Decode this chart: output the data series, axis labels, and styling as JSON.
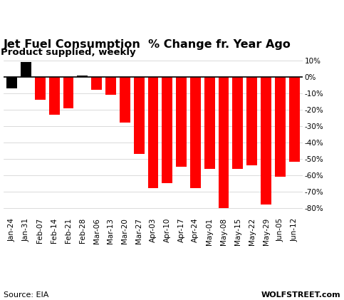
{
  "categories": [
    "Jan-24",
    "Jan-31",
    "Feb-07",
    "Feb-14",
    "Feb-21",
    "Feb-28",
    "Mar-06",
    "Mar-13",
    "Mar-20",
    "Mar-27",
    "Apr-03",
    "Apr-10",
    "Apr-17",
    "Apr-24",
    "May-01",
    "May-08",
    "May-15",
    "May-22",
    "May-29",
    "Jun-05",
    "Jun-12"
  ],
  "values": [
    -7,
    9,
    -14,
    -23,
    -19,
    1,
    -8,
    -11,
    -28,
    -47,
    -68,
    -65,
    -55,
    -68,
    -56,
    -80,
    -56,
    -54,
    -78,
    -61,
    -52
  ],
  "bar_colors": [
    "#000000",
    "#000000",
    "#ff0000",
    "#ff0000",
    "#ff0000",
    "#000000",
    "#ff0000",
    "#ff0000",
    "#ff0000",
    "#ff0000",
    "#ff0000",
    "#ff0000",
    "#ff0000",
    "#ff0000",
    "#ff0000",
    "#ff0000",
    "#ff0000",
    "#ff0000",
    "#ff0000",
    "#ff0000",
    "#ff0000"
  ],
  "title": "Jet Fuel Consumption  % Change fr. Year Ago",
  "subtitle": "Product supplied, weekly",
  "ylim": [
    -85,
    14
  ],
  "yticks": [
    10,
    0,
    -10,
    -20,
    -30,
    -40,
    -50,
    -60,
    -70,
    -80
  ],
  "source_left": "Source: EIA",
  "source_right": "WOLFSTREET.com",
  "title_fontsize": 11.5,
  "subtitle_fontsize": 9.5,
  "tick_fontsize": 7.5,
  "source_fontsize": 8
}
